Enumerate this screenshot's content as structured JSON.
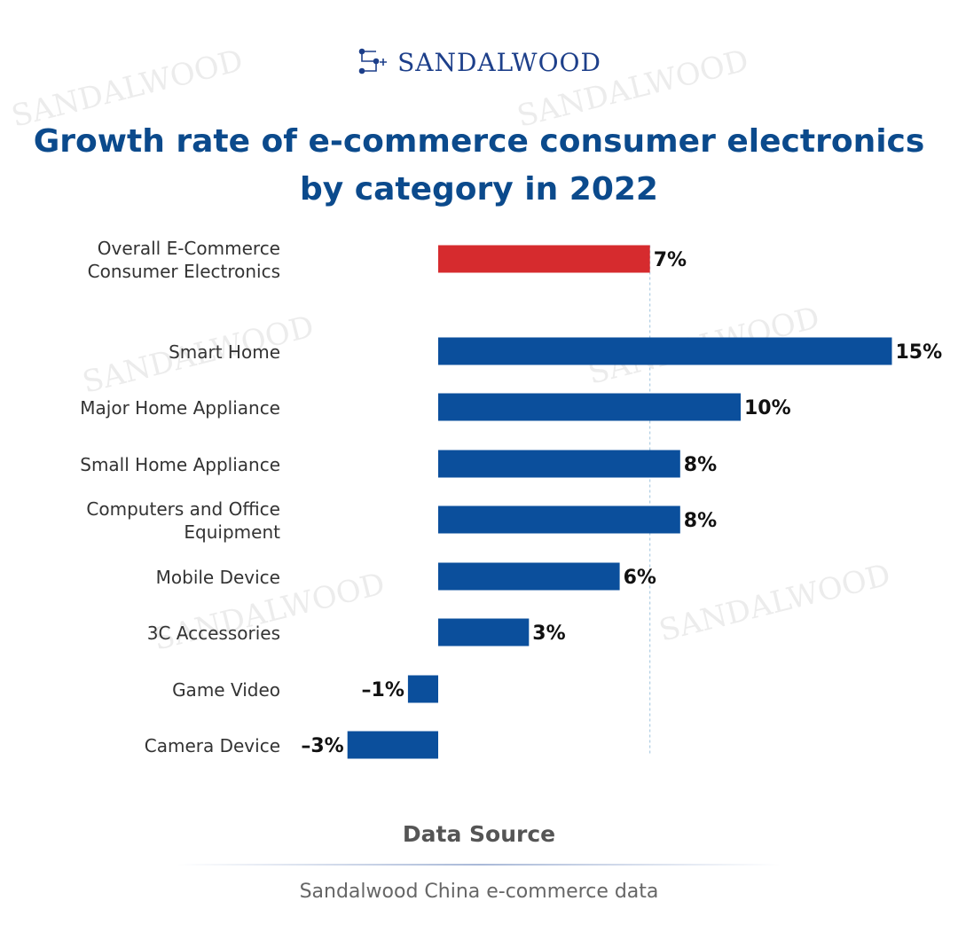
{
  "brand": {
    "name": "SANDALWOOD",
    "icon": "sandalwood-logo-icon"
  },
  "title_lines": [
    "Growth rate of e-commerce consumer electronics",
    "by category in 2022"
  ],
  "source": {
    "heading": "Data Source",
    "text": "Sandalwood China e-commerce data"
  },
  "colors": {
    "highlight": "#d62b2e",
    "bar": "#0b4f9c",
    "title": "#0b4a8c",
    "refline": "#9fc3dd"
  },
  "chart_data": {
    "type": "bar",
    "orientation": "horizontal",
    "categories": [
      "Overall E-Commerce Consumer Electronics",
      "Smart Home",
      "Major Home Appliance",
      "Small Home Appliance",
      "Computers and Office Equipment",
      "Mobile Device",
      "3C Accessories",
      "Game Video",
      "Camera Device"
    ],
    "category_lines": [
      [
        "Overall E-Commerce",
        "Consumer Electronics"
      ],
      [
        "Smart Home"
      ],
      [
        "Major Home Appliance"
      ],
      [
        "Small Home Appliance"
      ],
      [
        "Computers and Office",
        "Equipment"
      ],
      [
        "Mobile Device"
      ],
      [
        "3C Accessories"
      ],
      [
        "Game Video"
      ],
      [
        "Camera Device"
      ]
    ],
    "values": [
      7,
      15,
      10,
      8,
      8,
      6,
      3,
      -1,
      -3
    ],
    "data_labels": [
      "7%",
      "15%",
      "10%",
      "8%",
      "8%",
      "6%",
      "3%",
      "–1%",
      "–3%"
    ],
    "highlight_index": 0,
    "reference_value": 7,
    "xlim": [
      -3,
      15
    ],
    "unit": "%",
    "grid": false,
    "legend": "none"
  }
}
